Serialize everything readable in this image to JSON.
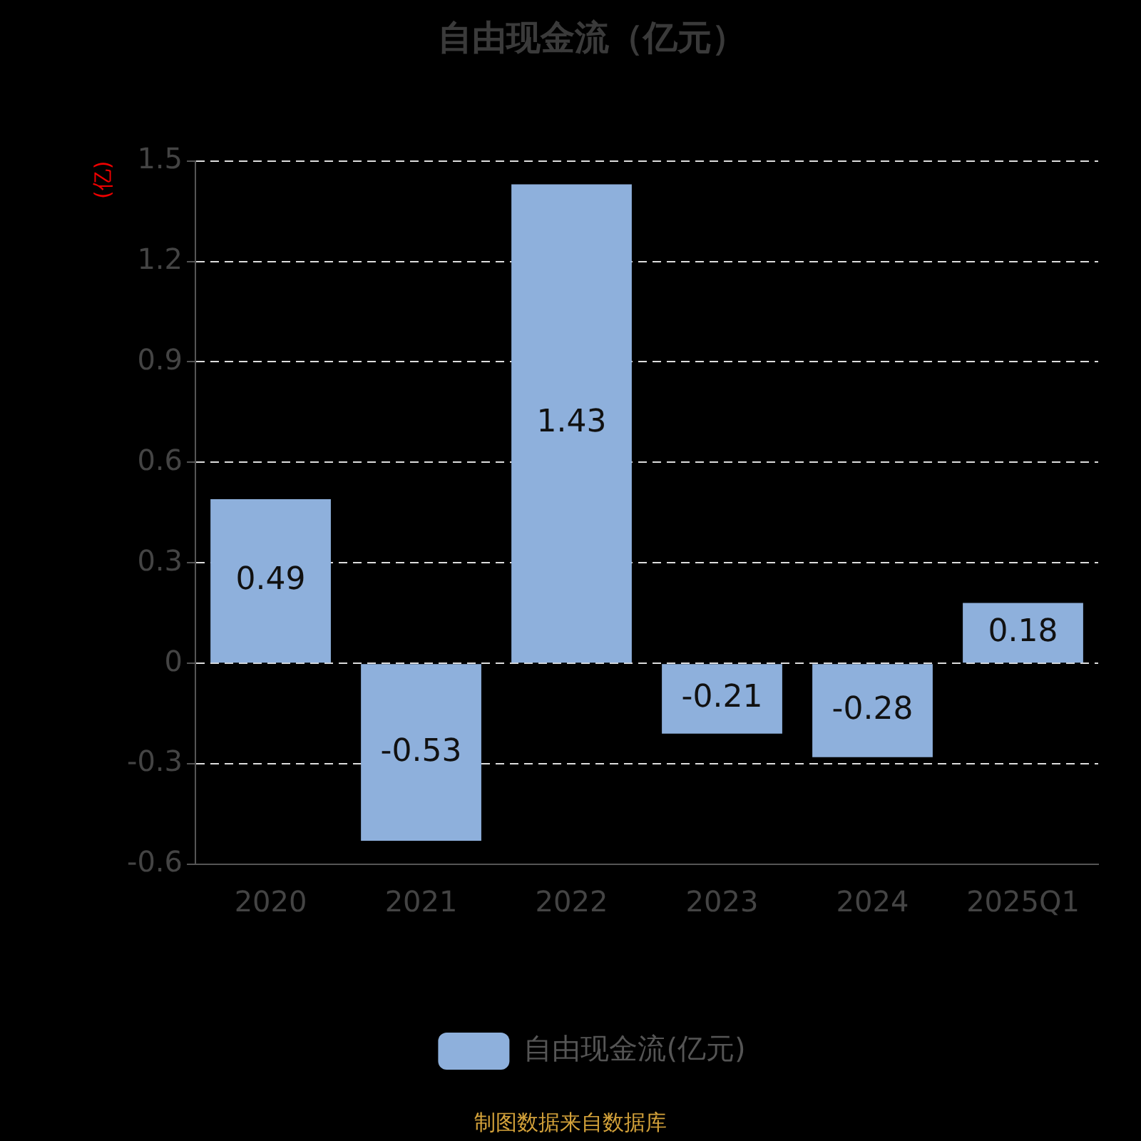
{
  "chart_data": {
    "type": "bar",
    "title": "自由现金流（亿元）",
    "ylabel": "(亿)",
    "categories": [
      "2020",
      "2021",
      "2022",
      "2023",
      "2024",
      "2025Q1"
    ],
    "series": [
      {
        "name": "自由现金流(亿元)",
        "color": "#8eb0dc",
        "values": [
          0.49,
          -0.53,
          1.43,
          -0.21,
          -0.28,
          0.18
        ]
      }
    ],
    "ylim": [
      -0.6,
      1.5
    ],
    "yticks": [
      -0.6,
      -0.3,
      0,
      0.3,
      0.6,
      0.9,
      1.2,
      1.5
    ],
    "grid": "y",
    "legend": "bottom",
    "data_labels": true,
    "annotations": [
      "制图数据来自数据库"
    ]
  }
}
